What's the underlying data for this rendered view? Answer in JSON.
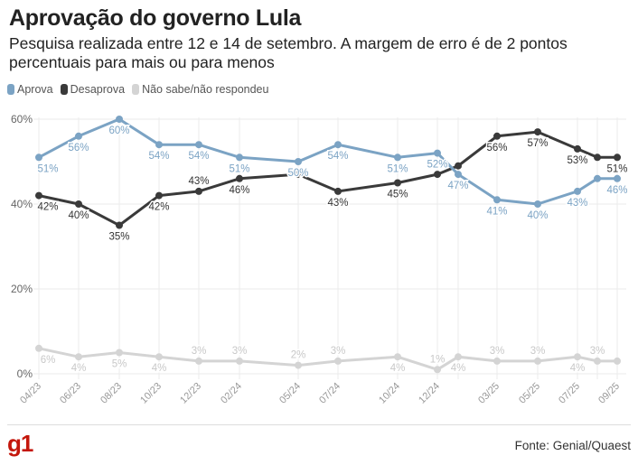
{
  "header": {
    "title": "Aprovação do governo Lula",
    "subtitle": "Pesquisa realizada entre 12 e 14 de setembro. A margem de erro é de 2 pontos percentuais para mais ou para menos"
  },
  "footer": {
    "logo": "g1",
    "source": "Fonte: Genial/Quaest"
  },
  "chart_data": {
    "type": "line",
    "title": "Aprovação do governo Lula",
    "xlabel": "",
    "ylabel": "",
    "ylim": [
      0,
      60
    ],
    "y_ticks": [
      "0%",
      "20%",
      "40%",
      "60%"
    ],
    "y_tick_values": [
      0,
      20,
      40,
      60
    ],
    "grid": true,
    "legend_position": "top-left",
    "x": [
      "04/23",
      "06/23",
      "08/23",
      "10/23",
      "12/23",
      "02/24",
      "05/24",
      "07/24",
      "10/24",
      "12/24",
      "01/25",
      "03/25",
      "05/25",
      "07/25",
      "08/25",
      "09/25"
    ],
    "x_tick_labels": [
      "04/23",
      "06/23",
      "08/23",
      "10/23",
      "12/23",
      "02/24",
      "05/24",
      "07/24",
      "10/24",
      "12/24",
      "",
      "03/25",
      "05/25",
      "07/25",
      "",
      "09/25"
    ],
    "series": [
      {
        "name": "Aprova",
        "color": "#7ba3c4",
        "values": [
          51,
          56,
          60,
          54,
          54,
          51,
          50,
          54,
          51,
          52,
          47,
          41,
          40,
          43,
          46,
          46
        ],
        "labels": [
          "51%",
          "56%",
          "60%",
          "54%",
          "54%",
          "51%",
          "50%",
          "54%",
          "51%",
          "52%",
          "47%",
          "41%",
          "40%",
          "43%",
          "",
          "46%"
        ]
      },
      {
        "name": "Desaprova",
        "color": "#3a3a3a",
        "values": [
          42,
          40,
          35,
          42,
          43,
          46,
          47,
          43,
          45,
          47,
          49,
          56,
          57,
          53,
          51,
          51
        ],
        "labels": [
          "42%",
          "40%",
          "35%",
          "42%",
          "43%",
          "46%",
          "",
          "43%",
          "45%",
          "",
          "",
          "56%",
          "57%",
          "53%",
          "",
          "51%"
        ]
      },
      {
        "name": "Não sabe/não respondeu",
        "color": "#d4d4d4",
        "values": [
          6,
          4,
          5,
          4,
          3,
          3,
          2,
          3,
          4,
          1,
          4,
          3,
          3,
          4,
          3,
          3
        ],
        "labels": [
          "6%",
          "4%",
          "5%",
          "4%",
          "3%",
          "3%",
          "2%",
          "3%",
          "4%",
          "1%",
          "4%",
          "3%",
          "3%",
          "4%",
          "3%",
          ""
        ]
      }
    ]
  }
}
